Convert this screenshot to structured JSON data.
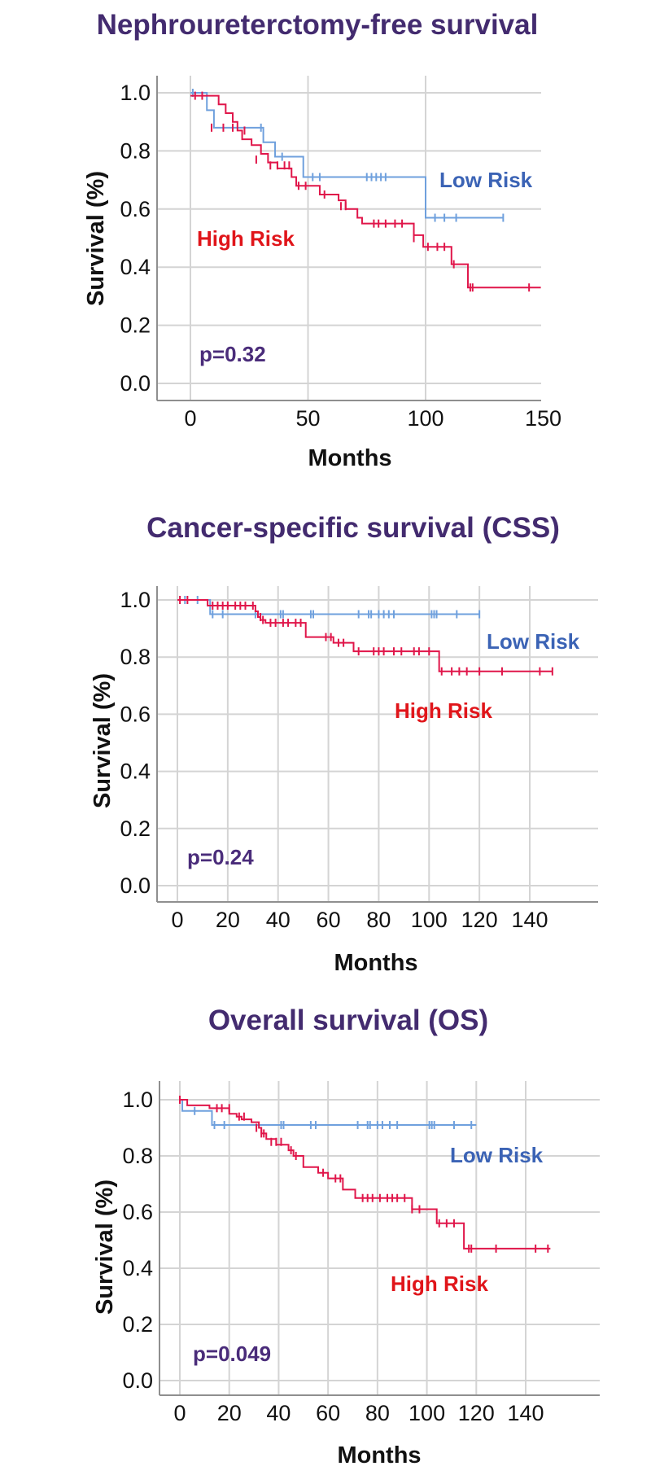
{
  "chart_data": [
    {
      "type": "line",
      "subtype": "kaplan-meier step",
      "title": "Nephroureterctomy-free survival",
      "xlabel": "Months",
      "ylabel": "Survival (%)",
      "xlim": [
        -14,
        150
      ],
      "ylim": [
        -0.05,
        1.05
      ],
      "xticks": [
        "0",
        "50",
        "100",
        "150"
      ],
      "xtick_values": [
        0,
        50,
        100,
        150
      ],
      "yticks": [
        "0.0",
        "0.2",
        "0.4",
        "0.6",
        "0.8",
        "1.0"
      ],
      "ytick_values": [
        0,
        0.2,
        0.4,
        0.6,
        0.8,
        1.0
      ],
      "grid": true,
      "annotation": "p=0.32",
      "series": [
        {
          "name": "Low Risk",
          "color": "#6fa0dd",
          "label_color": "#3b63b5",
          "steps": [
            [
              0,
              1.0
            ],
            [
              7,
              0.94
            ],
            [
              10,
              0.88
            ],
            [
              31,
              0.83
            ],
            [
              36,
              0.78
            ],
            [
              48,
              0.71
            ],
            [
              100,
              0.57
            ],
            [
              133,
              0.57
            ]
          ],
          "censored": [
            [
              1,
              1.0
            ],
            [
              30,
              0.88
            ],
            [
              39,
              0.78
            ],
            [
              52,
              0.71
            ],
            [
              55,
              0.71
            ],
            [
              75,
              0.71
            ],
            [
              77,
              0.71
            ],
            [
              79,
              0.71
            ],
            [
              81,
              0.71
            ],
            [
              83,
              0.71
            ],
            [
              104,
              0.57
            ],
            [
              108,
              0.57
            ],
            [
              113,
              0.57
            ],
            [
              133,
              0.57
            ]
          ]
        },
        {
          "name": "High Risk",
          "color": "#e0164a",
          "label_color": "#e0151a",
          "steps": [
            [
              0,
              0.99
            ],
            [
              0,
              0.99
            ],
            [
              12,
              0.96
            ],
            [
              15,
              0.93
            ],
            [
              18,
              0.9
            ],
            [
              20,
              0.87
            ],
            [
              22,
              0.84
            ],
            [
              26,
              0.82
            ],
            [
              30,
              0.79
            ],
            [
              33,
              0.76
            ],
            [
              37,
              0.74
            ],
            [
              43,
              0.71
            ],
            [
              45,
              0.68
            ],
            [
              55,
              0.65
            ],
            [
              63,
              0.63
            ],
            [
              66,
              0.6
            ],
            [
              71,
              0.57
            ],
            [
              73,
              0.55
            ],
            [
              95,
              0.51
            ],
            [
              99,
              0.47
            ],
            [
              111,
              0.41
            ],
            [
              118,
              0.33
            ],
            [
              149,
              0.33
            ]
          ],
          "censored": [
            [
              2,
              0.99
            ],
            [
              5,
              0.99
            ],
            [
              9,
              0.88
            ],
            [
              14,
              0.88
            ],
            [
              18,
              0.88
            ],
            [
              23,
              0.87
            ],
            [
              28,
              0.77
            ],
            [
              34,
              0.75
            ],
            [
              37,
              0.75
            ],
            [
              40,
              0.75
            ],
            [
              42,
              0.75
            ],
            [
              46,
              0.68
            ],
            [
              49,
              0.68
            ],
            [
              57,
              0.65
            ],
            [
              64,
              0.61
            ],
            [
              66,
              0.61
            ],
            [
              78,
              0.55
            ],
            [
              80,
              0.55
            ],
            [
              83,
              0.55
            ],
            [
              87,
              0.55
            ],
            [
              90,
              0.55
            ],
            [
              95,
              0.5
            ],
            [
              101,
              0.47
            ],
            [
              105,
              0.47
            ],
            [
              108,
              0.47
            ],
            [
              112,
              0.41
            ],
            [
              119,
              0.33
            ],
            [
              120,
              0.33
            ],
            [
              144,
              0.33
            ]
          ]
        }
      ]
    },
    {
      "type": "line",
      "subtype": "kaplan-meier step",
      "title": "Cancer-specific survival (CSS)",
      "xlabel": "Months",
      "ylabel": "Survival (%)",
      "xlim": [
        -8,
        152
      ],
      "ylim": [
        -0.06,
        1.02
      ],
      "xticks": [
        "0",
        "20",
        "40",
        "60",
        "80",
        "100",
        "120",
        "140"
      ],
      "xtick_values": [
        0,
        20,
        40,
        60,
        80,
        100,
        120,
        140
      ],
      "yticks": [
        "0.0",
        "0.2",
        "0.4",
        "0.6",
        "0.8",
        "1.0"
      ],
      "ytick_values": [
        0,
        0.2,
        0.4,
        0.6,
        0.8,
        1.0
      ],
      "grid": true,
      "annotation": "p=0.24",
      "series": [
        {
          "name": "Low Risk",
          "color": "#6fa0dd",
          "label_color": "#3b63b5",
          "steps": [
            [
              0,
              1.0
            ],
            [
              13,
              0.95
            ],
            [
              120,
              0.95
            ]
          ],
          "censored": [
            [
              3,
              1.0
            ],
            [
              8,
              1.0
            ],
            [
              14,
              0.95
            ],
            [
              18,
              0.95
            ],
            [
              31,
              0.95
            ],
            [
              41,
              0.95
            ],
            [
              42,
              0.95
            ],
            [
              53,
              0.95
            ],
            [
              54,
              0.95
            ],
            [
              72,
              0.95
            ],
            [
              76,
              0.95
            ],
            [
              77,
              0.95
            ],
            [
              80,
              0.95
            ],
            [
              82,
              0.95
            ],
            [
              84,
              0.95
            ],
            [
              86,
              0.95
            ],
            [
              101,
              0.95
            ],
            [
              102,
              0.95
            ],
            [
              103,
              0.95
            ],
            [
              111,
              0.95
            ],
            [
              120,
              0.95
            ]
          ]
        },
        {
          "name": "High Risk",
          "color": "#e0164a",
          "label_color": "#e0151a",
          "steps": [
            [
              0,
              1.0
            ],
            [
              12,
              0.98
            ],
            [
              31,
              0.96
            ],
            [
              32,
              0.94
            ],
            [
              33,
              0.93
            ],
            [
              35,
              0.92
            ],
            [
              51,
              0.87
            ],
            [
              62,
              0.85
            ],
            [
              70,
              0.82
            ],
            [
              104,
              0.75
            ],
            [
              149,
              0.75
            ]
          ],
          "censored": [
            [
              1,
              1.0
            ],
            [
              4,
              1.0
            ],
            [
              14,
              0.98
            ],
            [
              16,
              0.98
            ],
            [
              18,
              0.98
            ],
            [
              20,
              0.98
            ],
            [
              23,
              0.98
            ],
            [
              25,
              0.98
            ],
            [
              27,
              0.98
            ],
            [
              30,
              0.98
            ],
            [
              33,
              0.94
            ],
            [
              34,
              0.93
            ],
            [
              37,
              0.92
            ],
            [
              39,
              0.92
            ],
            [
              42,
              0.92
            ],
            [
              44,
              0.92
            ],
            [
              47,
              0.92
            ],
            [
              49,
              0.92
            ],
            [
              59,
              0.87
            ],
            [
              61,
              0.87
            ],
            [
              64,
              0.85
            ],
            [
              66,
              0.85
            ],
            [
              72,
              0.82
            ],
            [
              78,
              0.82
            ],
            [
              80,
              0.82
            ],
            [
              82,
              0.82
            ],
            [
              86,
              0.82
            ],
            [
              89,
              0.82
            ],
            [
              94,
              0.82
            ],
            [
              96,
              0.82
            ],
            [
              100,
              0.82
            ],
            [
              105,
              0.75
            ],
            [
              109,
              0.75
            ],
            [
              112,
              0.75
            ],
            [
              115,
              0.75
            ],
            [
              120,
              0.75
            ],
            [
              129,
              0.75
            ],
            [
              144,
              0.75
            ],
            [
              149,
              0.75
            ]
          ]
        }
      ]
    },
    {
      "type": "line",
      "subtype": "kaplan-meier step",
      "title": "Overall survival (OS)",
      "xlabel": "Months",
      "ylabel": "Survival (%)",
      "xlim": [
        -8,
        152
      ],
      "ylim": [
        -0.06,
        1.02
      ],
      "xticks": [
        "0",
        "20",
        "40",
        "60",
        "80",
        "100",
        "120",
        "140"
      ],
      "xtick_values": [
        0,
        20,
        40,
        60,
        80,
        100,
        120,
        140
      ],
      "yticks": [
        "0.0",
        "0.2",
        "0.4",
        "0.6",
        "0.8",
        "1.0"
      ],
      "ytick_values": [
        0,
        0.2,
        0.4,
        0.6,
        0.8,
        1.0
      ],
      "grid": true,
      "annotation": "p=0.049",
      "series": [
        {
          "name": "Low Risk",
          "color": "#6fa0dd",
          "label_color": "#3b63b5",
          "steps": [
            [
              0,
              1.0
            ],
            [
              1,
              0.96
            ],
            [
              13,
              0.91
            ],
            [
              120,
              0.91
            ]
          ],
          "censored": [
            [
              6,
              0.96
            ],
            [
              14,
              0.91
            ],
            [
              18,
              0.91
            ],
            [
              41,
              0.91
            ],
            [
              42,
              0.91
            ],
            [
              53,
              0.91
            ],
            [
              55,
              0.91
            ],
            [
              72,
              0.91
            ],
            [
              76,
              0.91
            ],
            [
              77,
              0.91
            ],
            [
              80,
              0.91
            ],
            [
              82,
              0.91
            ],
            [
              85,
              0.91
            ],
            [
              88,
              0.91
            ],
            [
              101,
              0.91
            ],
            [
              102,
              0.91
            ],
            [
              103,
              0.91
            ],
            [
              111,
              0.91
            ],
            [
              118,
              0.91
            ]
          ]
        },
        {
          "name": "High Risk",
          "color": "#e0164a",
          "label_color": "#e0151a",
          "steps": [
            [
              0,
              1.0
            ],
            [
              3,
              0.98
            ],
            [
              12,
              0.97
            ],
            [
              20,
              0.95
            ],
            [
              23,
              0.94
            ],
            [
              25,
              0.93
            ],
            [
              29,
              0.92
            ],
            [
              32,
              0.9
            ],
            [
              33,
              0.88
            ],
            [
              35,
              0.86
            ],
            [
              39,
              0.84
            ],
            [
              44,
              0.82
            ],
            [
              46,
              0.8
            ],
            [
              50,
              0.76
            ],
            [
              56,
              0.74
            ],
            [
              60,
              0.72
            ],
            [
              66,
              0.68
            ],
            [
              71,
              0.65
            ],
            [
              94,
              0.61
            ],
            [
              104,
              0.56
            ],
            [
              115,
              0.47
            ],
            [
              150,
              0.47
            ]
          ],
          "censored": [
            [
              0,
              1.0
            ],
            [
              15,
              0.97
            ],
            [
              17,
              0.97
            ],
            [
              20,
              0.97
            ],
            [
              24,
              0.94
            ],
            [
              26,
              0.94
            ],
            [
              31,
              0.9
            ],
            [
              33,
              0.88
            ],
            [
              34,
              0.88
            ],
            [
              37,
              0.85
            ],
            [
              39,
              0.85
            ],
            [
              41,
              0.85
            ],
            [
              45,
              0.82
            ],
            [
              47,
              0.8
            ],
            [
              58,
              0.74
            ],
            [
              63,
              0.72
            ],
            [
              65,
              0.72
            ],
            [
              74,
              0.65
            ],
            [
              76,
              0.65
            ],
            [
              78,
              0.65
            ],
            [
              81,
              0.65
            ],
            [
              84,
              0.65
            ],
            [
              86,
              0.65
            ],
            [
              88,
              0.65
            ],
            [
              91,
              0.65
            ],
            [
              94,
              0.61
            ],
            [
              97,
              0.61
            ],
            [
              105,
              0.56
            ],
            [
              108,
              0.56
            ],
            [
              111,
              0.56
            ],
            [
              117,
              0.47
            ],
            [
              118,
              0.47
            ],
            [
              128,
              0.47
            ],
            [
              144,
              0.47
            ],
            [
              149,
              0.47
            ]
          ]
        }
      ]
    }
  ]
}
